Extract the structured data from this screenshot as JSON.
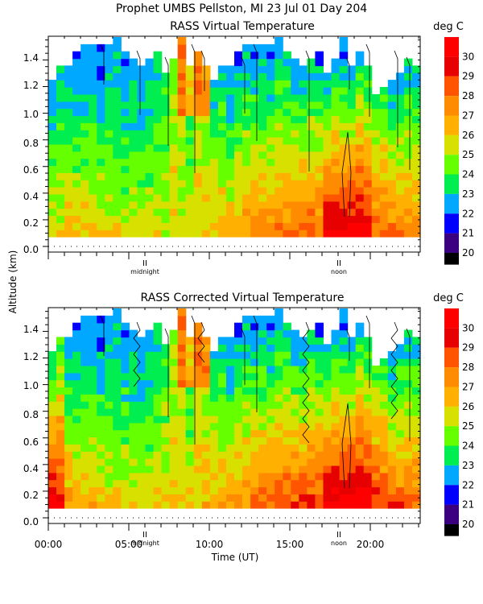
{
  "header": {
    "title": "Prophet  UMBS Pellston, MI  23 Jul 01 Day 204"
  },
  "chart_data": [
    {
      "type": "heatmap",
      "title": "RASS Virtual Temperature",
      "colorbar_label": "deg C",
      "ylabel": "Altitude (km)",
      "xlabel": "",
      "x_range_hours_ut": [
        0,
        23.5
      ],
      "ylim_km": [
        0.0,
        1.55
      ],
      "y_ticks": [
        "0.0",
        "0.2",
        "0.4",
        "0.6",
        "0.8",
        "1.0",
        "1.2",
        "1.4"
      ],
      "x_ticks": [
        "00:00",
        "05:00",
        "10:00",
        "15:00",
        "20:00"
      ],
      "x_tick_labels_shown": false,
      "day_markers": [
        {
          "hour_ut": 6,
          "label": "midnight"
        },
        {
          "hour_ut": 18,
          "label": "noon"
        }
      ],
      "grid": false,
      "values_approx": {
        "surface_deg_c": "24-28, peaking ~30 near noon",
        "top_deg_c": "20-22"
      }
    },
    {
      "type": "heatmap",
      "title": "RASS Corrected Virtual Temperature",
      "colorbar_label": "deg C",
      "ylabel": "Altitude (km)",
      "xlabel": "Time (UT)",
      "x_range_hours_ut": [
        0,
        23.5
      ],
      "ylim_km": [
        0.0,
        1.55
      ],
      "y_ticks": [
        "0.0",
        "0.2",
        "0.4",
        "0.6",
        "0.8",
        "1.0",
        "1.2",
        "1.4"
      ],
      "x_ticks": [
        "00:00",
        "05:00",
        "10:00",
        "15:00",
        "20:00"
      ],
      "x_tick_labels_shown": true,
      "day_markers": [
        {
          "hour_ut": 6,
          "label": "midnight"
        },
        {
          "hour_ut": 18,
          "label": "noon"
        }
      ],
      "grid": false,
      "values_approx": {
        "surface_deg_c": "25-29, peaking ~30 near noon",
        "top_deg_c": "20-22"
      }
    }
  ],
  "colorbar": {
    "ticks": [
      "30",
      "29",
      "28",
      "27",
      "26",
      "25",
      "24",
      "23",
      "22",
      "21",
      "20"
    ],
    "colors": [
      "#ff0000",
      "#e60000",
      "#ff5500",
      "#ff8c00",
      "#ffb000",
      "#d8e000",
      "#66ff00",
      "#00ee50",
      "#00a8ff",
      "#0000ff",
      "#3a0080",
      "#000000"
    ]
  }
}
